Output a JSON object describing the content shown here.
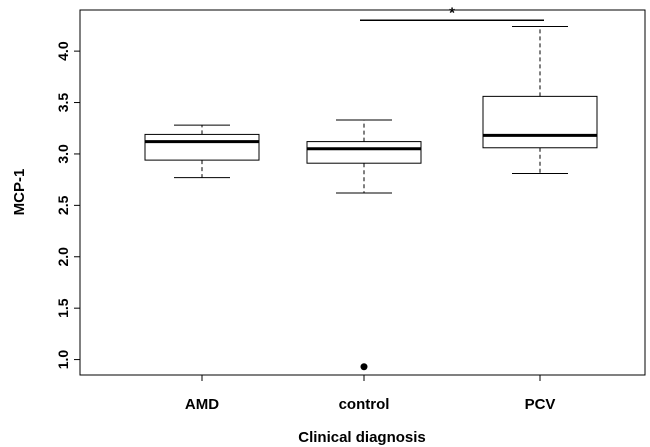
{
  "chart_data": {
    "type": "boxplot",
    "xlabel": "Clinical diagnosis",
    "ylabel": "MCP-1",
    "ylim": [
      0.85,
      4.4
    ],
    "yticks": [
      1.0,
      1.5,
      2.0,
      2.5,
      3.0,
      3.5,
      4.0
    ],
    "ytick_labels": [
      "1.0",
      "1.5",
      "2.0",
      "2.5",
      "3.0",
      "3.5",
      "4.0"
    ],
    "grid": false,
    "categories": [
      "AMD",
      "control",
      "PCV"
    ],
    "boxes": [
      {
        "category": "AMD",
        "whisker_low": 2.77,
        "q1": 2.94,
        "median": 3.12,
        "q3": 3.19,
        "whisker_high": 3.28,
        "outliers": []
      },
      {
        "category": "control",
        "whisker_low": 2.62,
        "q1": 2.91,
        "median": 3.05,
        "q3": 3.12,
        "whisker_high": 3.33,
        "outliers": [
          0.93
        ]
      },
      {
        "category": "PCV",
        "whisker_low": 2.81,
        "q1": 3.06,
        "median": 3.18,
        "q3": 3.56,
        "whisker_high": 4.24,
        "outliers": []
      }
    ],
    "annotations": [
      {
        "type": "significance",
        "from": "control",
        "to": "PCV",
        "y": 4.3,
        "label": "*"
      }
    ]
  }
}
